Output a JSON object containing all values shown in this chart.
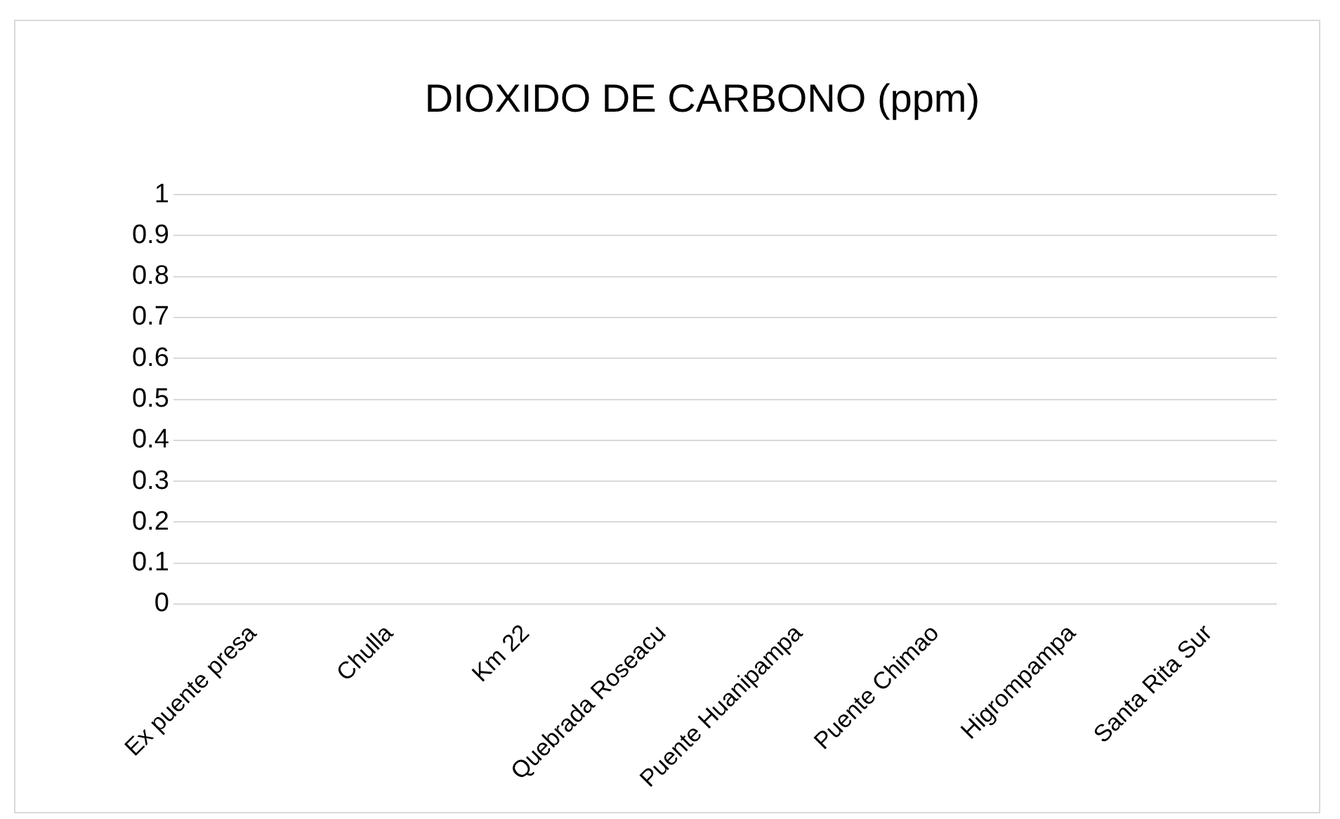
{
  "chart_data": {
    "type": "bar",
    "title": "DIOXIDO DE CARBONO (ppm)",
    "categories": [
      "Ex puente presa",
      "Chulla",
      "Km 22",
      "Quebrada Roseacu",
      "Puente Huanipampa",
      "Puente Chimao",
      "Higrompampa",
      "Santa Rita Sur"
    ],
    "values": [
      0,
      0,
      0,
      0,
      0,
      0,
      0,
      0
    ],
    "ylim": [
      0,
      1
    ],
    "yticks": [
      0,
      0.1,
      0.2,
      0.3,
      0.4,
      0.5,
      0.6,
      0.7,
      0.8,
      0.9,
      1
    ],
    "grid": "y"
  }
}
